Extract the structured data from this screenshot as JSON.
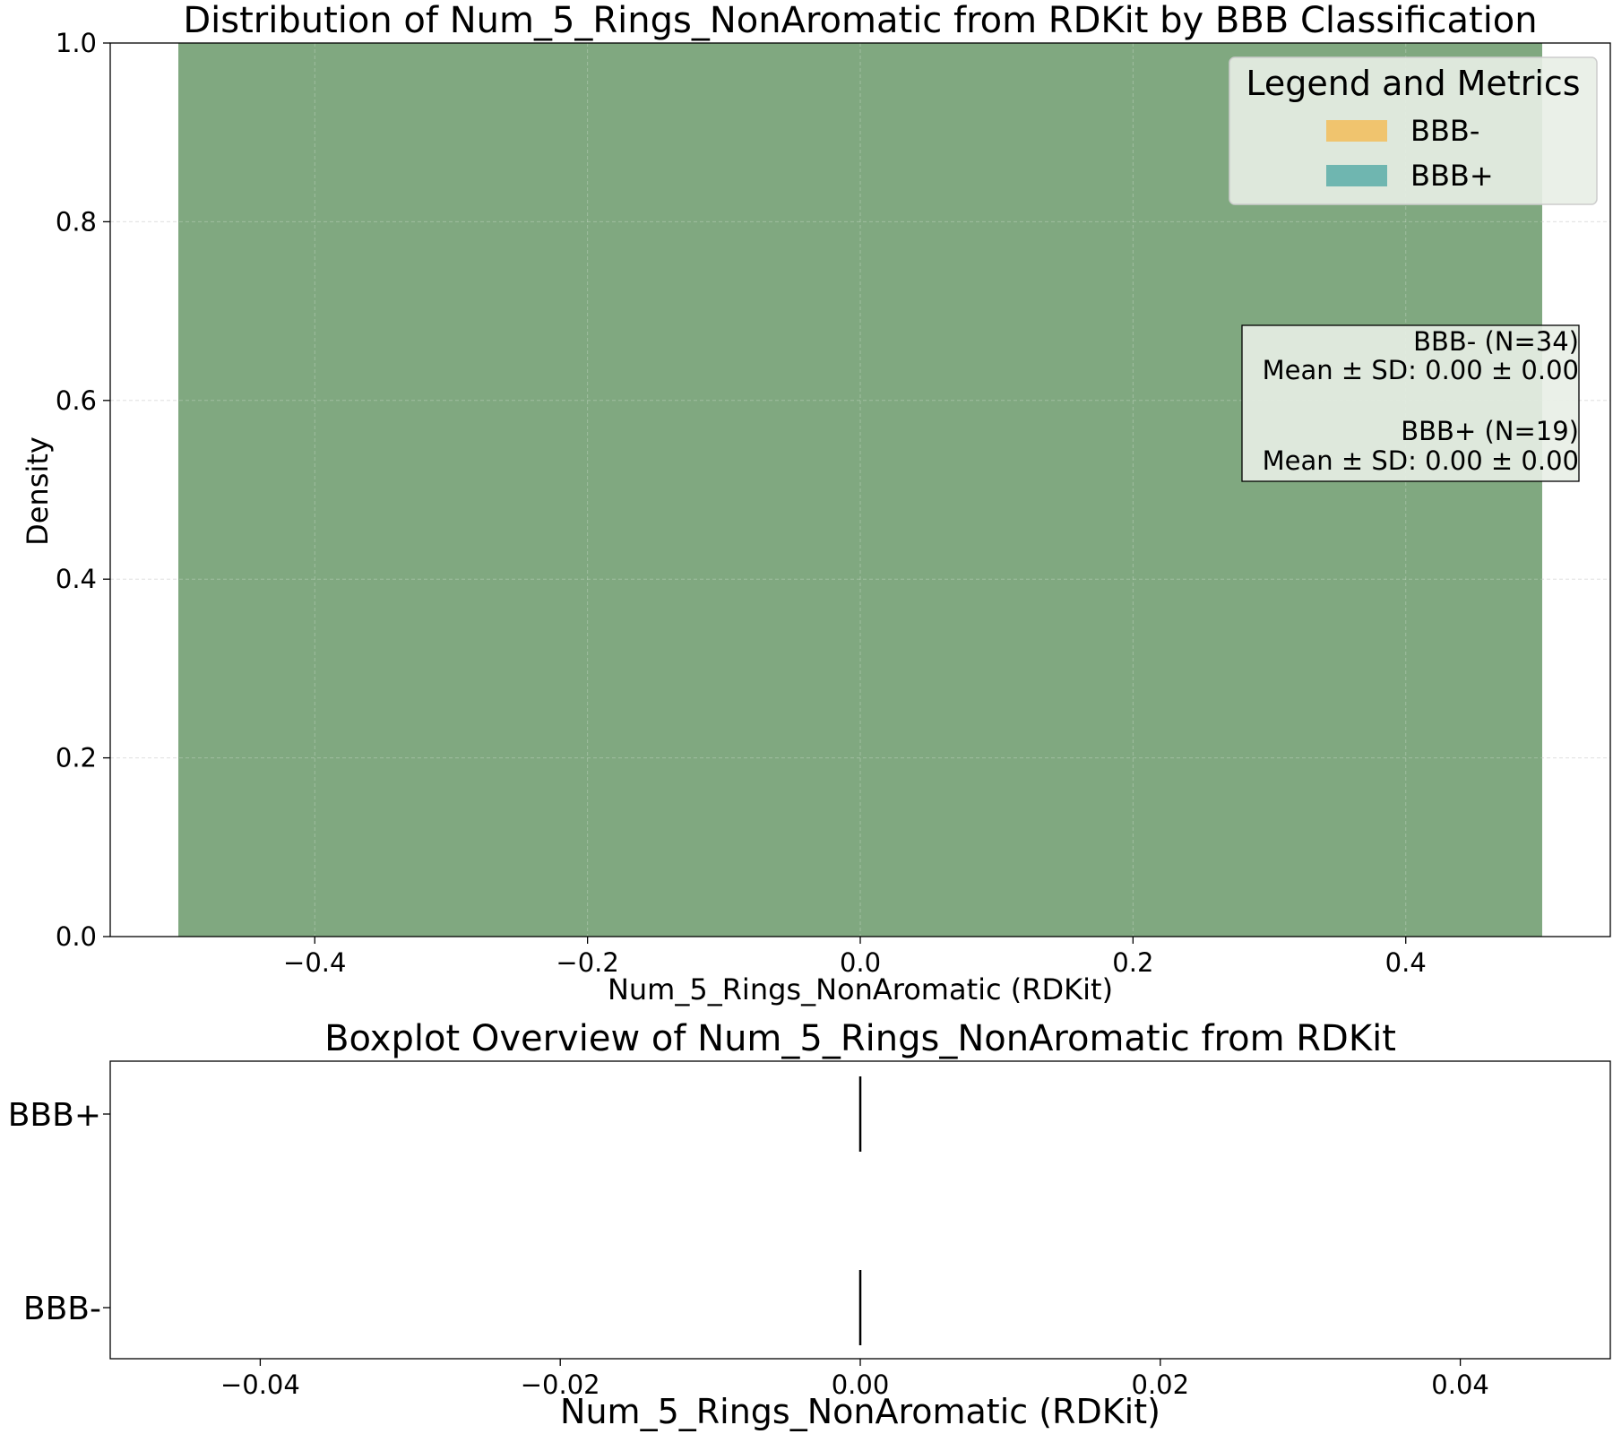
{
  "chart_data": [
    {
      "type": "histogram",
      "title": "Distribution of Num_5_Rings_NonAromatic from RDKit by BBB Classification",
      "xlabel": "Num_5_Rings_NonAromatic (RDKit)",
      "ylabel": "Density",
      "xlim": [
        -0.55,
        0.55
      ],
      "ylim": [
        0,
        1.0
      ],
      "xticks": [
        -0.4,
        -0.2,
        0.0,
        0.2,
        0.4
      ],
      "xtick_labels": [
        "−0.4",
        "−0.2",
        "0.0",
        "0.2",
        "0.4"
      ],
      "yticks": [
        0.0,
        0.2,
        0.4,
        0.6,
        0.8,
        1.0
      ],
      "ytick_labels": [
        "0.0",
        "0.2",
        "0.4",
        "0.6",
        "0.8",
        "1.0"
      ],
      "grid": true,
      "series": [
        {
          "name": "BBB-",
          "color": "#f0c46e",
          "bins": [
            {
              "x0": -0.5,
              "x1": 0.5,
              "density": 1.0
            }
          ]
        },
        {
          "name": "BBB+",
          "color": "#5fb0a8",
          "bins": [
            {
              "x0": -0.5,
              "x1": 0.5,
              "density": 1.0
            }
          ]
        }
      ],
      "overlap_color": "#80a880",
      "legend": {
        "title": "Legend and Metrics",
        "placement": "top-right"
      },
      "metrics_box": {
        "placement": "right",
        "lines": [
          "BBB- (N=34)",
          "Mean ± SD: 0.00 ± 0.00",
          "",
          "BBB+ (N=19)",
          "Mean ± SD: 0.00 ± 0.00"
        ]
      }
    },
    {
      "type": "boxplot",
      "title": "Boxplot Overview of Num_5_Rings_NonAromatic from RDKit",
      "xlabel": "Num_5_Rings_NonAromatic (RDKit)",
      "xlim": [
        -0.05,
        0.05
      ],
      "xticks": [
        -0.04,
        -0.02,
        0.0,
        0.02,
        0.04
      ],
      "xtick_labels": [
        "−0.04",
        "−0.02",
        "0.00",
        "0.02",
        "0.04"
      ],
      "categories": [
        "BBB+",
        "BBB-"
      ],
      "boxes": [
        {
          "name": "BBB+",
          "min": 0,
          "q1": 0,
          "median": 0,
          "q3": 0,
          "max": 0
        },
        {
          "name": "BBB-",
          "min": 0,
          "q1": 0,
          "median": 0,
          "q3": 0,
          "max": 0
        }
      ]
    }
  ]
}
